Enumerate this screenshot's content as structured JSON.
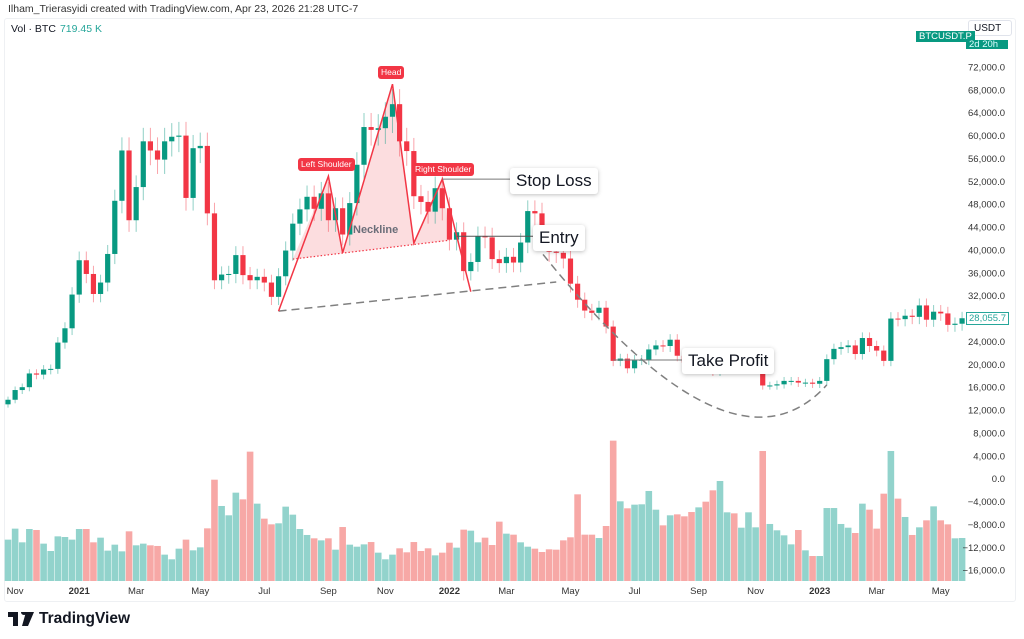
{
  "header": {
    "credit": "Ilham_Trierasyidi created with TradingView.com, Apr 23, 2026 21:28 UTC-7"
  },
  "legend": {
    "label": "Vol · BTC",
    "value": "719.45 K"
  },
  "axis": {
    "currency": "USDT",
    "symbol_tag": "BTCUSDT.P",
    "countdown": "2d 20h",
    "last_price": "28,055.7"
  },
  "colors": {
    "up": "#089981",
    "down": "#f23645",
    "vol_up": "#92d3cc",
    "vol_down": "#f7a8a6",
    "pattern": "#f23645",
    "pattern_fill": "#fbd5d7",
    "guide": "#808080"
  },
  "chart_data": {
    "type": "candlestick",
    "interval": "1W",
    "start_week": "2020-10-26",
    "first_open": 13000,
    "closes": [
      13800,
      15500,
      16000,
      18400,
      18200,
      19100,
      19200,
      23800,
      26300,
      32200,
      38200,
      35800,
      32300,
      34300,
      39300,
      48600,
      57400,
      45200,
      51000,
      59000,
      57400,
      55800,
      59000,
      59800,
      60000,
      49100,
      57800,
      58200,
      46400,
      34700,
      35700,
      35800,
      39100,
      35600,
      34700,
      35300,
      34300,
      31800,
      35400,
      39900,
      44600,
      47100,
      49300,
      47200,
      49900,
      45200,
      47300,
      42700,
      48200,
      54900,
      61500,
      61000,
      61300,
      63300,
      65500,
      59000,
      57300,
      49400,
      48400,
      46700,
      50800,
      47300,
      41800,
      43100,
      36300,
      37900,
      42400,
      42200,
      38400,
      37700,
      38800,
      37800,
      41300,
      46800,
      46400,
      42200,
      39700,
      39500,
      38500,
      34100,
      31300,
      29400,
      29000,
      29900,
      26600,
      20600,
      21000,
      19300,
      20800,
      20800,
      22600,
      23300,
      23200,
      24300,
      21500,
      20300,
      19800,
      21800,
      19400,
      18800,
      19300,
      19400,
      19200,
      19600,
      20600,
      21300,
      16300,
      16300,
      16500,
      17100,
      17100,
      16800,
      16800,
      16600,
      17100,
      20900,
      22700,
      23000,
      23300,
      21800,
      24600,
      23200,
      22400,
      20600,
      28000,
      27900,
      28500,
      28300,
      30300,
      27800,
      29200,
      28900,
      26900,
      27100,
      28055.7
    ],
    "volume_k": [
      692,
      876,
      647,
      870,
      853,
      625,
      502,
      747,
      736,
      692,
      870,
      870,
      647,
      725,
      508,
      608,
      496,
      831,
      597,
      625,
      597,
      586,
      441,
      363,
      541,
      692,
      513,
      563,
      881,
      1695,
      1255,
      1099,
      1478,
      1366,
      2164,
      1294,
      1043,
      948,
      965,
      1244,
      1110,
      870,
      770,
      714,
      680,
      714,
      524,
      903,
      608,
      574,
      613,
      652,
      474,
      363,
      441,
      547,
      480,
      652,
      502,
      547,
      429,
      474,
      641,
      558,
      859,
      842,
      647,
      725,
      602,
      993,
      792,
      775,
      647,
      574,
      541,
      485,
      530,
      524,
      680,
      731,
      1450,
      775,
      775,
      719,
      920,
      2348,
      1333,
      1216,
      1277,
      1283,
      1506,
      1193,
      931,
      1099,
      1115,
      1082,
      1154,
      1232,
      1327,
      1517,
      1673,
      1149,
      1132,
      892,
      1149,
      898,
      2175,
      954,
      848,
      764,
      613,
      853,
      513,
      418,
      418,
      1221,
      1221,
      954,
      892,
      803,
      1294,
      1193,
      876,
      1461,
      2175,
      1378,
      1071,
      770,
      898,
      1015,
      1249,
      1015,
      948,
      714,
      719.45
    ],
    "y_ticks": [
      "72,000.0",
      "68,000.0",
      "64,000.0",
      "60,000.0",
      "56,000.0",
      "52,000.0",
      "48,000.0",
      "44,000.0",
      "40,000.0",
      "36,000.0",
      "32,000.0",
      "24,000.0",
      "20,000.0",
      "16,000.0",
      "12,000.0",
      "8,000.0",
      "4,000.0",
      "0.0",
      "−4,000.0",
      "−8,000.0",
      "−12,000.0",
      "−16,000.0"
    ],
    "y_tick_values": [
      72000,
      68000,
      64000,
      60000,
      56000,
      52000,
      48000,
      44000,
      40000,
      36000,
      32000,
      24000,
      20000,
      16000,
      12000,
      8000,
      4000,
      0,
      -4000,
      -8000,
      -12000,
      -16000
    ],
    "x_ticks": [
      {
        "label": "Nov",
        "date": "2020-11-02",
        "bold": false
      },
      {
        "label": "2021",
        "date": "2021-01-04",
        "bold": true
      },
      {
        "label": "Mar",
        "date": "2021-03-01",
        "bold": false
      },
      {
        "label": "May",
        "date": "2021-05-03",
        "bold": false
      },
      {
        "label": "Jul",
        "date": "2021-07-05",
        "bold": false
      },
      {
        "label": "Sep",
        "date": "2021-09-06",
        "bold": false
      },
      {
        "label": "Nov",
        "date": "2021-11-01",
        "bold": false
      },
      {
        "label": "2022",
        "date": "2022-01-03",
        "bold": true
      },
      {
        "label": "Mar",
        "date": "2022-02-28",
        "bold": false
      },
      {
        "label": "May",
        "date": "2022-05-02",
        "bold": false
      },
      {
        "label": "Jul",
        "date": "2022-07-04",
        "bold": false
      },
      {
        "label": "Sep",
        "date": "2022-09-05",
        "bold": false
      },
      {
        "label": "Nov",
        "date": "2022-10-31",
        "bold": false
      },
      {
        "label": "2023",
        "date": "2023-01-02",
        "bold": true
      },
      {
        "label": "Mar",
        "date": "2023-02-27",
        "bold": false
      },
      {
        "label": "May",
        "date": "2023-05-01",
        "bold": false
      }
    ],
    "annotations": {
      "head_and_shoulders": [
        [
          "2021-07-19",
          29300
        ],
        [
          "2021-09-06",
          52900
        ],
        [
          "2021-09-20",
          39500
        ],
        [
          "2021-11-08",
          69000
        ],
        [
          "2021-11-29",
          41200
        ],
        [
          "2021-12-27",
          52400
        ],
        [
          "2022-01-24",
          32700
        ]
      ],
      "neckline": [
        [
          "2021-08-02",
          38400
        ],
        [
          "2022-01-03",
          41700
        ]
      ],
      "support_line": [
        [
          "2021-07-19",
          29300
        ],
        [
          "2022-04-18",
          34400
        ]
      ],
      "stop_loss": {
        "label": "Stop Loss",
        "price": 52400,
        "from": "2021-12-27"
      },
      "entry": {
        "label": "Entry",
        "price": 42400,
        "from": "2022-01-10"
      },
      "take_profit": {
        "label": "Take Profit",
        "price": 20750,
        "from": "2022-06-13"
      },
      "target_arc": [
        [
          "2022-03-28",
          41000
        ],
        [
          "2022-09-12",
          13200
        ],
        [
          "2023-01-09",
          16400
        ]
      ],
      "labels": {
        "head": "Head",
        "left_shoulder": "Left Shoulder",
        "right_shoulder": "Right Shoulder",
        "neckline": "Neckline"
      }
    }
  },
  "footer": {
    "brand": "TradingView"
  }
}
